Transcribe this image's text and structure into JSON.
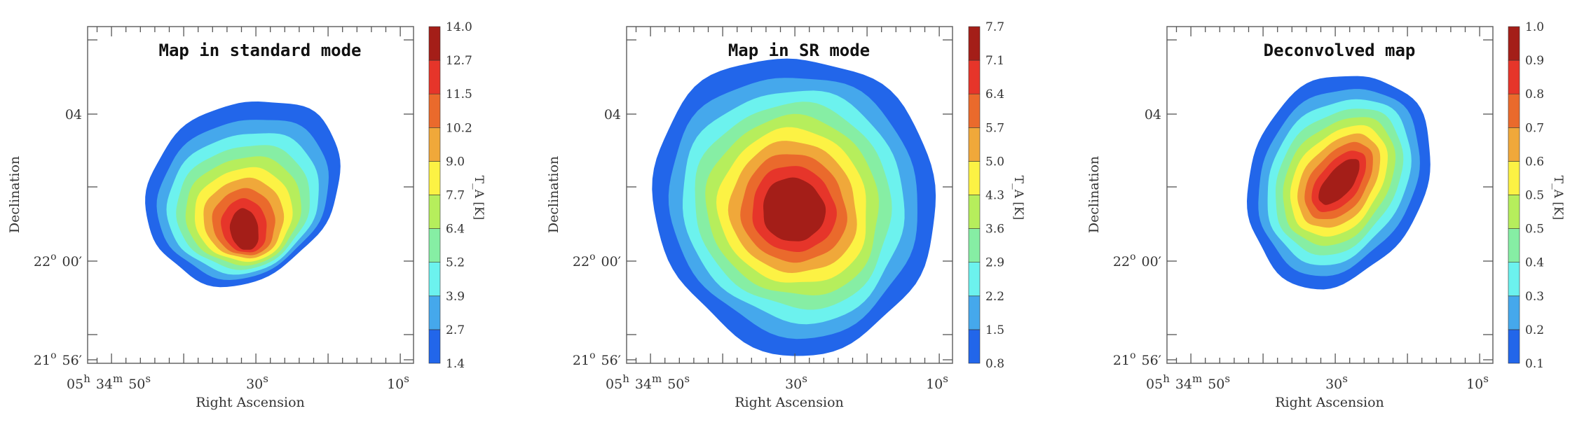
{
  "chart_data": [
    {
      "type": "contour",
      "title": "Map in standard mode",
      "xlabel": "Right Ascension",
      "ylabel": "Declination",
      "xtick_labels": [
        "05h 34m 50s",
        "30s",
        "10s"
      ],
      "ytick_labels": [
        "04",
        "22° 00′",
        "21° 56′"
      ],
      "colorbar_label": "T_A [K]",
      "colorbar_levels": [
        1.4,
        2.7,
        3.9,
        5.2,
        6.4,
        7.7,
        9.0,
        10.2,
        11.5,
        12.7,
        14.0
      ]
    },
    {
      "type": "contour",
      "title": "Map in SR mode",
      "xlabel": "Right Ascension",
      "ylabel": "Declination",
      "xtick_labels": [
        "05h 34m 50s",
        "30s",
        "10s"
      ],
      "ytick_labels": [
        "04",
        "22° 00′",
        "21° 56′"
      ],
      "colorbar_label": "T_A [K]",
      "colorbar_levels": [
        0.8,
        1.5,
        2.2,
        2.9,
        3.6,
        4.3,
        5.0,
        5.7,
        6.4,
        7.1,
        7.7
      ]
    },
    {
      "type": "contour",
      "title": "Deconvolved map",
      "xlabel": "Right Ascension",
      "ylabel": "Declination",
      "xtick_labels": [
        "05h 34m 50s",
        "30s",
        "10s"
      ],
      "ytick_labels": [
        "04",
        "22° 00′",
        "21° 56′"
      ],
      "colorbar_label": "T_A [K]",
      "colorbar_levels": [
        0.1,
        0.2,
        0.3,
        0.4,
        0.5,
        0.5,
        0.6,
        0.7,
        0.8,
        0.9,
        1.0
      ]
    }
  ],
  "colors": [
    "#2266ea",
    "#45a8ec",
    "#6cf2ee",
    "#86eea4",
    "#b6ee5c",
    "#fcf244",
    "#f0a83a",
    "#ea6a2c",
    "#e6352a",
    "#a41e18"
  ]
}
